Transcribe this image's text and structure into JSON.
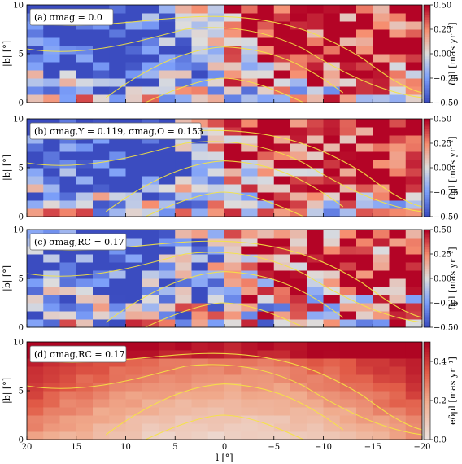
{
  "chart_data": [
    {
      "type": "heatmap",
      "panel_label": "(a) σ_mag = 0.0",
      "xlabel": "",
      "ylabel": "|b| [°]",
      "colorbar_label": "δμ_l [mas yr⁻¹]",
      "xlim": [
        20,
        -20
      ],
      "ylim": [
        0,
        10
      ],
      "clim": [
        -0.5,
        0.5
      ],
      "colormap": "coolwarm",
      "x_ticks": [
        20,
        15,
        10,
        5,
        0,
        -5,
        -10,
        -15,
        -20
      ],
      "y_ticks": [
        0,
        5,
        10
      ],
      "cbar_ticks": [
        "0.50",
        "0.25",
        "0.00",
        "-0.25",
        "-0.50"
      ],
      "grid": "24x12 cells, values in [-0.5, 0.5]",
      "contours": "yellow density contours"
    },
    {
      "type": "heatmap",
      "panel_label": "(b) σ_mag,Y = 0.119, σ_mag,O = 0.153",
      "ylabel": "|b| [°]",
      "colorbar_label": "δμ_l [mas yr⁻¹]",
      "xlim": [
        20,
        -20
      ],
      "ylim": [
        0,
        10
      ],
      "clim": [
        -0.5,
        0.5
      ],
      "cbar_ticks": [
        "0.50",
        "0.25",
        "0.00",
        "-0.25",
        "-0.50"
      ]
    },
    {
      "type": "heatmap",
      "panel_label": "(c) σ_mag,RC = 0.17",
      "ylabel": "|b| [°]",
      "colorbar_label": "δμ_l [mas yr⁻¹]",
      "xlim": [
        20,
        -20
      ],
      "ylim": [
        0,
        10
      ],
      "clim": [
        -0.5,
        0.5
      ],
      "cbar_ticks": [
        "0.50",
        "0.25",
        "0.00",
        "-0.25",
        "-0.50"
      ]
    },
    {
      "type": "heatmap",
      "panel_label": "(d) σ_mag,RC = 0.17",
      "xlabel": "l [°]",
      "ylabel": "|b| [°]",
      "colorbar_label": "e_δμ_l [mas yr⁻¹]",
      "xlim": [
        20,
        -20
      ],
      "ylim": [
        0,
        10
      ],
      "clim": [
        0.0,
        0.5
      ],
      "colormap": "Reds",
      "cbar_ticks": [
        "0.4",
        "0.2",
        "0.0"
      ]
    }
  ],
  "labels": {
    "x_ticks": [
      "20",
      "15",
      "10",
      "5",
      "0",
      "−5",
      "−10",
      "−15",
      "−20"
    ],
    "y_ticks": [
      "0",
      "5",
      "10"
    ],
    "xlabel": "l [°]",
    "ylabel": "|b| [°]",
    "cbar_a": "δμl [mas yr⁻¹]",
    "cbar_d": "eδμl [mas yr⁻¹]",
    "panel_a": "(a) σmag = 0.0",
    "panel_b": "(b) σmag,Y = 0.119, σmag,O = 0.153",
    "panel_c": "(c) σmag,RC = 0.17",
    "panel_d": "(d) σmag,RC = 0.17",
    "cbar_ticks_div": [
      "0.50",
      "0.25",
      "0.00",
      "−0.25",
      "−0.50"
    ],
    "cbar_ticks_seq": [
      "0.4",
      "0.2",
      "0.0"
    ]
  },
  "colors": {
    "contour": "#f5e442",
    "cool": "#3b4cc0",
    "warm": "#b40426"
  }
}
